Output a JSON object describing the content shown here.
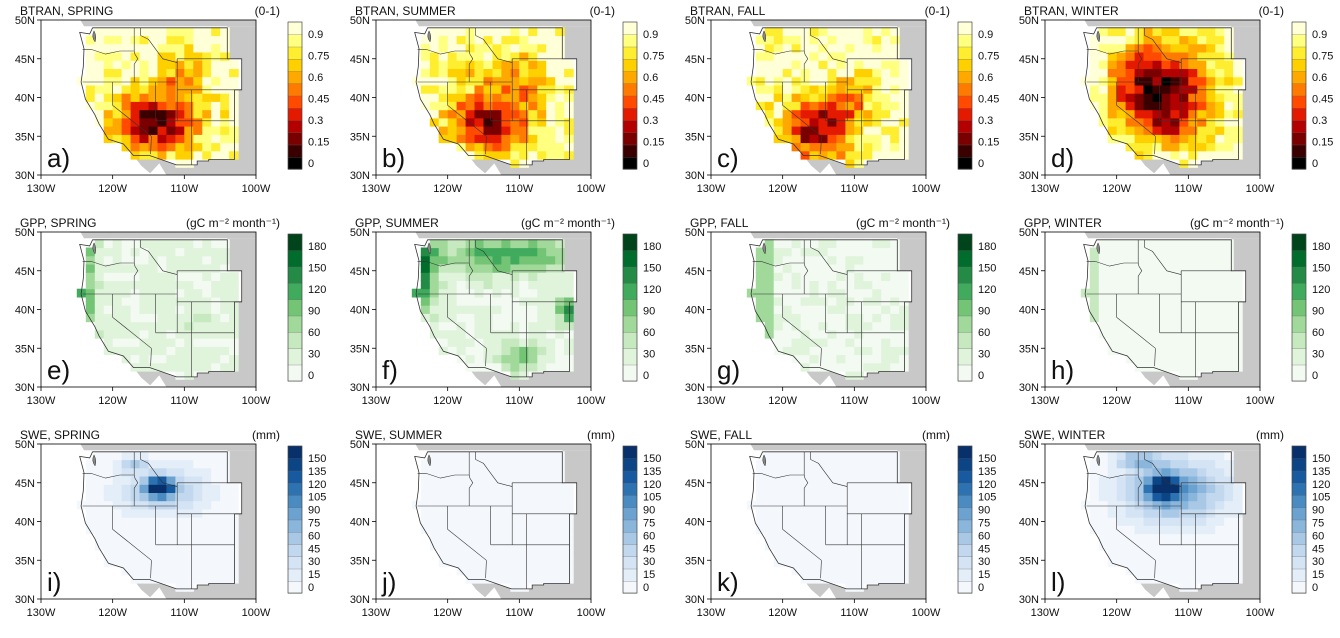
{
  "figure": {
    "x_ticks": [
      "130W",
      "120W",
      "110W",
      "100W"
    ],
    "y_ticks": [
      "30N",
      "35N",
      "40N",
      "45N",
      "50N"
    ],
    "land_color": "#c8c8c8",
    "ocean_color": "#ffffff"
  },
  "panels": [
    {
      "id": "a",
      "title": "BTRAN, SPRING",
      "units": "(0-1)",
      "label": "a)",
      "palette": "btran",
      "ticks": [
        "0.9",
        "0.75",
        "0.6",
        "0.45",
        "0.3",
        "0.15",
        "0"
      ]
    },
    {
      "id": "b",
      "title": "BTRAN, SUMMER",
      "units": "(0-1)",
      "label": "b)",
      "palette": "btran",
      "ticks": [
        "0.9",
        "0.75",
        "0.6",
        "0.45",
        "0.3",
        "0.15",
        "0"
      ]
    },
    {
      "id": "c",
      "title": "BTRAN, FALL",
      "units": "(0-1)",
      "label": "c)",
      "palette": "btran",
      "ticks": [
        "0.9",
        "0.75",
        "0.6",
        "0.45",
        "0.3",
        "0.15",
        "0"
      ]
    },
    {
      "id": "d",
      "title": "BTRAN, WINTER",
      "units": "(0-1)",
      "label": "d)",
      "palette": "btran",
      "ticks": [
        "0.9",
        "0.75",
        "0.6",
        "0.45",
        "0.3",
        "0.15",
        "0"
      ]
    },
    {
      "id": "e",
      "title": "GPP, SPRING",
      "units": "(gC m⁻² month⁻¹)",
      "label": "e)",
      "palette": "gpp",
      "ticks": [
        "180",
        "150",
        "120",
        "90",
        "60",
        "30",
        "0"
      ]
    },
    {
      "id": "f",
      "title": "GPP, SUMMER",
      "units": "(gC m⁻² month⁻¹)",
      "label": "f)",
      "palette": "gpp",
      "ticks": [
        "180",
        "150",
        "120",
        "90",
        "60",
        "30",
        "0"
      ]
    },
    {
      "id": "g",
      "title": "GPP, FALL",
      "units": "(gC m⁻² month⁻¹)",
      "label": "g)",
      "palette": "gpp",
      "ticks": [
        "180",
        "150",
        "120",
        "90",
        "60",
        "30",
        "0"
      ]
    },
    {
      "id": "h",
      "title": "GPP, WINTER",
      "units": "(gC m⁻² month⁻¹)",
      "label": "h)",
      "palette": "gpp",
      "ticks": [
        "180",
        "150",
        "120",
        "90",
        "60",
        "30",
        "0"
      ]
    },
    {
      "id": "i",
      "title": "SWE, SPRING",
      "units": "(mm)",
      "label": "i)",
      "palette": "swe",
      "ticks": [
        "150",
        "135",
        "120",
        "105",
        "90",
        "75",
        "60",
        "45",
        "30",
        "15",
        "0"
      ]
    },
    {
      "id": "j",
      "title": "SWE, SUMMER",
      "units": "(mm)",
      "label": "j)",
      "palette": "swe",
      "ticks": [
        "150",
        "135",
        "120",
        "105",
        "90",
        "75",
        "60",
        "45",
        "30",
        "15",
        "0"
      ]
    },
    {
      "id": "k",
      "title": "SWE, FALL",
      "units": "(mm)",
      "label": "k)",
      "palette": "swe",
      "ticks": [
        "150",
        "135",
        "120",
        "105",
        "90",
        "75",
        "60",
        "45",
        "30",
        "15",
        "0"
      ]
    },
    {
      "id": "l",
      "title": "SWE, WINTER",
      "units": "(mm)",
      "label": "l)",
      "palette": "swe",
      "ticks": [
        "150",
        "135",
        "120",
        "105",
        "90",
        "75",
        "60",
        "45",
        "30",
        "15",
        "0"
      ]
    }
  ],
  "palettes": {
    "btran": [
      "#000000",
      "#3a0000",
      "#7a0000",
      "#b30000",
      "#e41a00",
      "#ff4a00",
      "#ff7a00",
      "#ffa800",
      "#ffd000",
      "#ffee30",
      "#ffff80",
      "#ffffd8"
    ],
    "gpp": [
      "#f2faf2",
      "#e0f3db",
      "#c7e9c0",
      "#a1d99b",
      "#74c476",
      "#41ab5d",
      "#238b45",
      "#006d2c",
      "#00441b"
    ],
    "swe": [
      "#f4f8fd",
      "#e4eef9",
      "#d4e4f4",
      "#c2d8ee",
      "#a8c8e6",
      "#8bb6dc",
      "#6ba2d0",
      "#4a8cc2",
      "#2d73b2",
      "#175aa0",
      "#0b4586",
      "#08306b"
    ]
  }
}
